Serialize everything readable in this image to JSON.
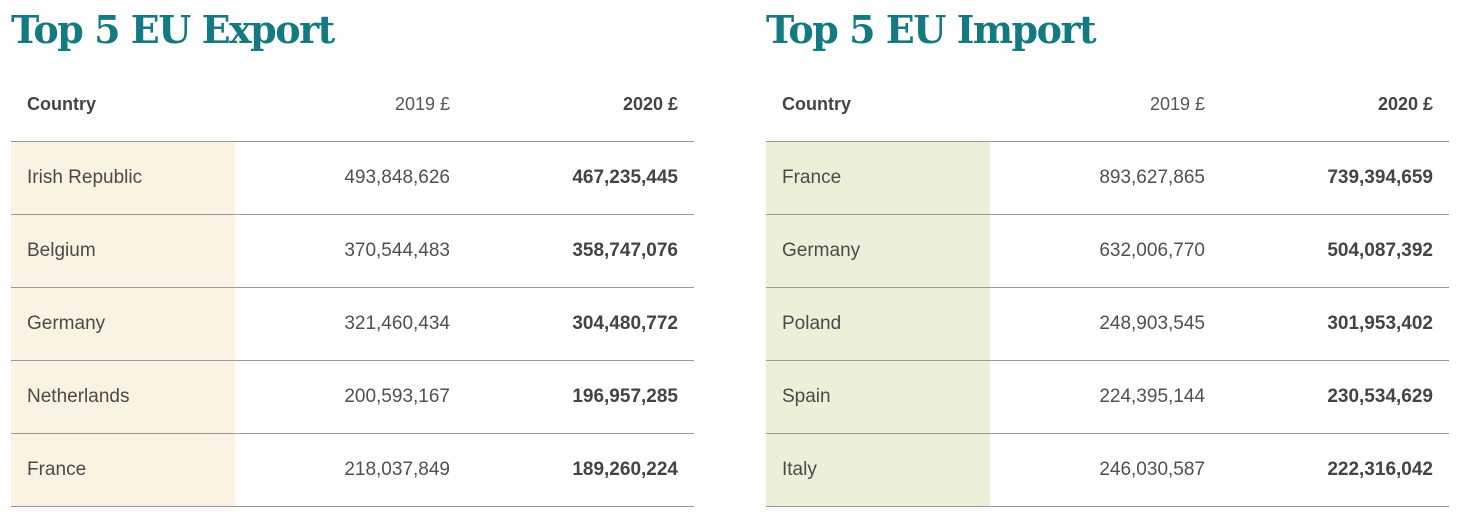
{
  "export": {
    "title": "Top 5 EU Export",
    "headers": {
      "country": "Country",
      "y2019": "2019 £",
      "y2020": "2020 £"
    },
    "rows": [
      {
        "country": "Irish Republic",
        "y2019": "493,848,626",
        "y2020": "467,235,445"
      },
      {
        "country": "Belgium",
        "y2019": "370,544,483",
        "y2020": "358,747,076"
      },
      {
        "country": "Germany",
        "y2019": "321,460,434",
        "y2020": "304,480,772"
      },
      {
        "country": "Netherlands",
        "y2019": "200,593,167",
        "y2020": "196,957,285"
      },
      {
        "country": "France",
        "y2019": "218,037,849",
        "y2020": "189,260,224"
      }
    ]
  },
  "import": {
    "title": "Top 5 EU Import",
    "headers": {
      "country": "Country",
      "y2019": "2019 £",
      "y2020": "2020 £"
    },
    "rows": [
      {
        "country": "France",
        "y2019": "893,627,865",
        "y2020": "739,394,659"
      },
      {
        "country": "Germany",
        "y2019": "632,006,770",
        "y2020": "504,087,392"
      },
      {
        "country": "Poland",
        "y2019": "248,903,545",
        "y2020": "301,953,402"
      },
      {
        "country": "Spain",
        "y2019": "224,395,144",
        "y2020": "230,534,629"
      },
      {
        "country": "Italy",
        "y2019": "246,030,587",
        "y2020": "222,316,042"
      }
    ]
  },
  "colors": {
    "title": "#137a82",
    "export_country_bg": "#faf3e1",
    "import_country_bg": "#ebf0d9",
    "rule": "#9a9a9a"
  }
}
